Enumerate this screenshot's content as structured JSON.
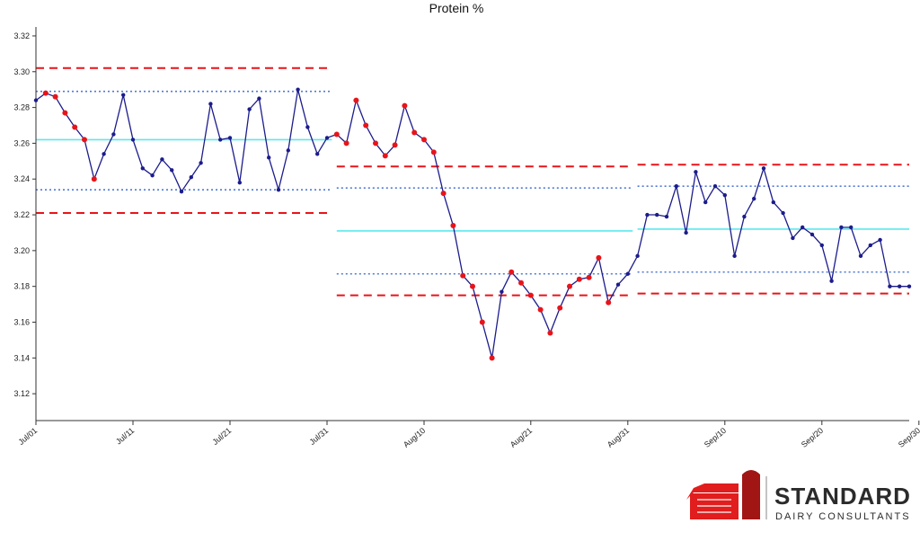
{
  "chart_data": {
    "type": "line",
    "title": "Protein %",
    "xlabel": "",
    "ylabel": "",
    "ylim": [
      3.105,
      3.325
    ],
    "yticks": [
      3.12,
      3.14,
      3.16,
      3.18,
      3.2,
      3.22,
      3.24,
      3.26,
      3.28,
      3.3,
      3.32
    ],
    "ytick_labels": [
      "3.12",
      "3.14",
      "3.16",
      "3.18",
      "3.20",
      "3.22",
      "3.24",
      "3.26",
      "3.28",
      "3.30",
      "3.32"
    ],
    "x_start": "2023-07-01",
    "xticks": [
      "2023-07-01",
      "2023-07-11",
      "2023-07-21",
      "2023-07-31",
      "2023-08-10",
      "2023-08-21",
      "2023-08-31",
      "2023-09-10",
      "2023-09-20",
      "2023-09-30"
    ],
    "xtick_labels": [
      "Jul/01",
      "Jul/11",
      "Jul/21",
      "Jul/31",
      "Aug/10",
      "Aug/21",
      "Aug/31",
      "Sep/10",
      "Sep/20",
      "Sep/30"
    ],
    "grid": false,
    "series": [
      {
        "name": "",
        "color": "#1c1c8c",
        "points": [
          [
            "2023-07-01",
            3.284,
            "normal"
          ],
          [
            "2023-07-02",
            3.288,
            "alert"
          ],
          [
            "2023-07-03",
            3.286,
            "alert"
          ],
          [
            "2023-07-04",
            3.277,
            "alert"
          ],
          [
            "2023-07-05",
            3.269,
            "alert"
          ],
          [
            "2023-07-06",
            3.262,
            "alert"
          ],
          [
            "2023-07-07",
            3.24,
            "alert"
          ],
          [
            "2023-07-08",
            3.254,
            "normal"
          ],
          [
            "2023-07-09",
            3.265,
            "normal"
          ],
          [
            "2023-07-10",
            3.287,
            "normal"
          ],
          [
            "2023-07-11",
            3.262,
            "normal"
          ],
          [
            "2023-07-12",
            3.246,
            "normal"
          ],
          [
            "2023-07-13",
            3.242,
            "normal"
          ],
          [
            "2023-07-14",
            3.251,
            "normal"
          ],
          [
            "2023-07-15",
            3.245,
            "normal"
          ],
          [
            "2023-07-16",
            3.233,
            "normal"
          ],
          [
            "2023-07-17",
            3.241,
            "normal"
          ],
          [
            "2023-07-18",
            3.249,
            "normal"
          ],
          [
            "2023-07-19",
            3.282,
            "normal"
          ],
          [
            "2023-07-20",
            3.262,
            "normal"
          ],
          [
            "2023-07-21",
            3.263,
            "normal"
          ],
          [
            "2023-07-22",
            3.238,
            "normal"
          ],
          [
            "2023-07-23",
            3.279,
            "normal"
          ],
          [
            "2023-07-24",
            3.285,
            "normal"
          ],
          [
            "2023-07-25",
            3.252,
            "normal"
          ],
          [
            "2023-07-26",
            3.234,
            "normal"
          ],
          [
            "2023-07-27",
            3.256,
            "normal"
          ],
          [
            "2023-07-28",
            3.29,
            "normal"
          ],
          [
            "2023-07-29",
            3.269,
            "normal"
          ],
          [
            "2023-07-30",
            3.254,
            "normal"
          ],
          [
            "2023-07-31",
            3.263,
            "normal"
          ],
          [
            "2023-08-01",
            3.265,
            "alert"
          ],
          [
            "2023-08-02",
            3.26,
            "alert"
          ],
          [
            "2023-08-03",
            3.284,
            "alert"
          ],
          [
            "2023-08-04",
            3.27,
            "alert"
          ],
          [
            "2023-08-05",
            3.26,
            "alert"
          ],
          [
            "2023-08-06",
            3.253,
            "alert"
          ],
          [
            "2023-08-07",
            3.259,
            "alert"
          ],
          [
            "2023-08-08",
            3.281,
            "alert"
          ],
          [
            "2023-08-09",
            3.266,
            "alert"
          ],
          [
            "2023-08-10",
            3.262,
            "alert"
          ],
          [
            "2023-08-11",
            3.255,
            "alert"
          ],
          [
            "2023-08-12",
            3.232,
            "alert"
          ],
          [
            "2023-08-13",
            3.214,
            "alert"
          ],
          [
            "2023-08-14",
            3.186,
            "alert"
          ],
          [
            "2023-08-15",
            3.18,
            "alert"
          ],
          [
            "2023-08-16",
            3.16,
            "alert"
          ],
          [
            "2023-08-17",
            3.14,
            "alert"
          ],
          [
            "2023-08-18",
            3.177,
            "normal"
          ],
          [
            "2023-08-19",
            3.188,
            "alert"
          ],
          [
            "2023-08-20",
            3.182,
            "alert"
          ],
          [
            "2023-08-21",
            3.175,
            "alert"
          ],
          [
            "2023-08-22",
            3.167,
            "alert"
          ],
          [
            "2023-08-23",
            3.154,
            "alert"
          ],
          [
            "2023-08-24",
            3.168,
            "alert"
          ],
          [
            "2023-08-25",
            3.18,
            "alert"
          ],
          [
            "2023-08-26",
            3.184,
            "alert"
          ],
          [
            "2023-08-27",
            3.185,
            "alert"
          ],
          [
            "2023-08-28",
            3.196,
            "alert"
          ],
          [
            "2023-08-29",
            3.171,
            "alert"
          ],
          [
            "2023-08-30",
            3.181,
            "normal"
          ],
          [
            "2023-08-31",
            3.187,
            "normal"
          ],
          [
            "2023-09-01",
            3.197,
            "normal"
          ],
          [
            "2023-09-02",
            3.22,
            "normal"
          ],
          [
            "2023-09-03",
            3.22,
            "normal"
          ],
          [
            "2023-09-04",
            3.219,
            "normal"
          ],
          [
            "2023-09-05",
            3.236,
            "normal"
          ],
          [
            "2023-09-06",
            3.21,
            "normal"
          ],
          [
            "2023-09-07",
            3.244,
            "normal"
          ],
          [
            "2023-09-08",
            3.227,
            "normal"
          ],
          [
            "2023-09-09",
            3.236,
            "normal"
          ],
          [
            "2023-09-10",
            3.231,
            "normal"
          ],
          [
            "2023-09-11",
            3.197,
            "normal"
          ],
          [
            "2023-09-12",
            3.219,
            "normal"
          ],
          [
            "2023-09-13",
            3.229,
            "normal"
          ],
          [
            "2023-09-14",
            3.246,
            "normal"
          ],
          [
            "2023-09-15",
            3.227,
            "normal"
          ],
          [
            "2023-09-16",
            3.221,
            "normal"
          ],
          [
            "2023-09-17",
            3.207,
            "normal"
          ],
          [
            "2023-09-18",
            3.213,
            "normal"
          ],
          [
            "2023-09-19",
            3.209,
            "normal"
          ],
          [
            "2023-09-20",
            3.203,
            "normal"
          ],
          [
            "2023-09-21",
            3.183,
            "normal"
          ],
          [
            "2023-09-22",
            3.213,
            "normal"
          ],
          [
            "2023-09-23",
            3.213,
            "normal"
          ],
          [
            "2023-09-24",
            3.197,
            "normal"
          ],
          [
            "2023-09-25",
            3.203,
            "normal"
          ],
          [
            "2023-09-26",
            3.206,
            "normal"
          ],
          [
            "2023-09-27",
            3.18,
            "normal"
          ],
          [
            "2023-09-28",
            3.18,
            "normal"
          ],
          [
            "2023-09-29",
            3.18,
            "normal"
          ]
        ]
      }
    ],
    "point_colors": {
      "normal": "#1c1c8c",
      "alert": "#e8141a"
    },
    "control_periods": [
      {
        "start": "2023-06-30",
        "end": "2023-07-31",
        "ucl": 3.302,
        "upper_sigma": 3.289,
        "mean": 3.262,
        "lower_sigma": 3.234,
        "lcl": 3.221
      },
      {
        "start": "2023-08-01",
        "end": "2023-08-31",
        "ucl": 3.247,
        "upper_sigma": 3.235,
        "mean": 3.211,
        "lower_sigma": 3.187,
        "lcl": 3.175
      },
      {
        "start": "2023-09-01",
        "end": "2023-09-30",
        "ucl": 3.248,
        "upper_sigma": 3.236,
        "mean": 3.212,
        "lower_sigma": 3.188,
        "lcl": 3.176
      }
    ],
    "line_styles": {
      "limit_color": "#e8141a",
      "sigma_color": "#4f79d6",
      "mean_color": "#5ce8ee"
    }
  },
  "logo": {
    "word": "STANDARD",
    "sub": "DAIRY CONSULTANTS",
    "barn_color": "#e11d1d",
    "dark_color": "#a11515"
  }
}
